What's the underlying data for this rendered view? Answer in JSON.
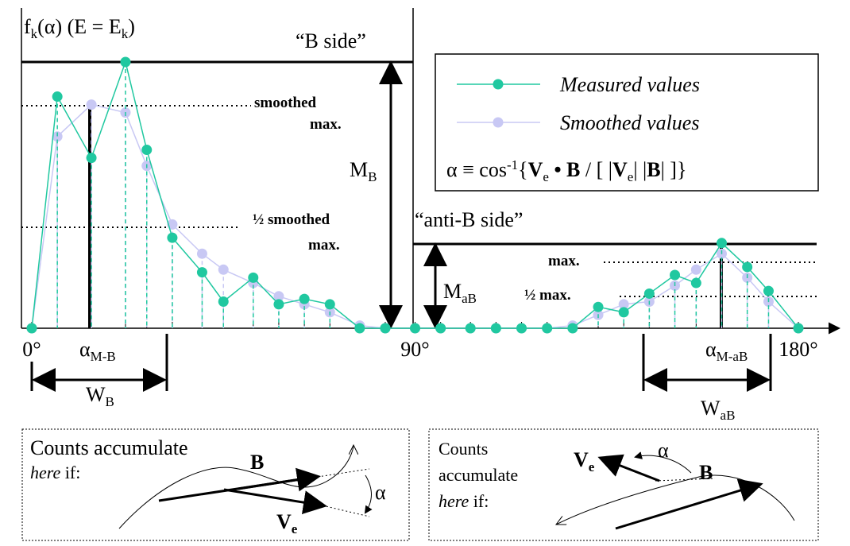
{
  "chart_data": {
    "type": "line",
    "title": [
      "f",
      "k",
      "(α) (E = E",
      "k",
      ")"
    ],
    "x": [
      0,
      6,
      14,
      22,
      27,
      33,
      40,
      45,
      52,
      58,
      64,
      70,
      77,
      83,
      90,
      96,
      103,
      109,
      115,
      121,
      127,
      133,
      139,
      145,
      151,
      156,
      162,
      168,
      173,
      180
    ],
    "series": [
      {
        "name": "Smoothed values",
        "color": "#c8c8f4",
        "values": [
          0,
          0.72,
          0.84,
          0.81,
          0.61,
          0.39,
          0.28,
          0.22,
          0.17,
          0.12,
          0.09,
          0.06,
          0.01,
          0,
          0,
          0,
          0,
          0,
          0,
          0,
          0.01,
          0.05,
          0.09,
          0.1,
          0.16,
          0.22,
          0.28,
          0.19,
          0.1,
          0
        ]
      },
      {
        "name": "Measured values",
        "color": "#20c8a0",
        "values": [
          0,
          0.87,
          0.64,
          1,
          0.67,
          0.34,
          0.21,
          0.1,
          0.19,
          0.09,
          0.11,
          0.09,
          0,
          0,
          0,
          0,
          0,
          0,
          0,
          0,
          0,
          0.08,
          0.06,
          0.13,
          0.2,
          0.17,
          0.32,
          0.23,
          0.14,
          0
        ]
      }
    ],
    "xlim": [
      0,
      180
    ],
    "xticks": [
      {
        "value": 0,
        "label": "0°"
      },
      {
        "value": 90,
        "label": "90°"
      },
      {
        "value": 180,
        "label": "180°"
      }
    ],
    "ylim": [
      0,
      1
    ],
    "formula": [
      "α ≡ cos",
      "-1",
      "{",
      "V",
      "e",
      " • ",
      "B",
      " / [ |",
      "V",
      "e",
      "| |",
      "B",
      "| ]}"
    ]
  },
  "annotations": {
    "b_side": "“B side”",
    "anti_b_side": "“anti-B side”",
    "smoothed_max": [
      "smoothed",
      "max."
    ],
    "half_smoothed_max": [
      "½ smoothed",
      "max."
    ],
    "max": "max.",
    "half_max": "½ max.",
    "m_b": [
      "M",
      "B"
    ],
    "m_ab": [
      "M",
      "aB"
    ],
    "alpha_m_b": [
      "α",
      "M-B"
    ],
    "alpha_m_ab": [
      "α",
      "M-aB"
    ],
    "w_b": [
      "W",
      "B"
    ],
    "w_ab": [
      "W",
      "aB"
    ]
  },
  "left_box": {
    "lines": [
      "Counts accumulate",
      "here",
      " if:"
    ],
    "b": "B",
    "v": [
      "V",
      "e"
    ],
    "alpha": "α"
  },
  "right_box": {
    "lines": [
      "Counts",
      "accumulate",
      "here",
      " if:"
    ],
    "b": "B",
    "v": [
      "V",
      "e"
    ],
    "alpha": "α"
  }
}
